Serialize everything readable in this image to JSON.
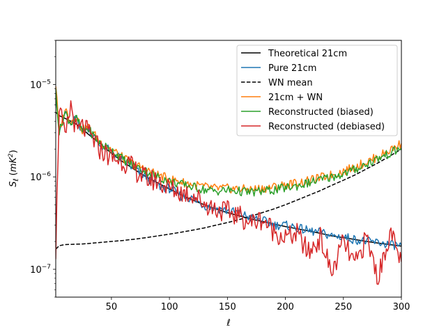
{
  "chart_data": {
    "type": "line",
    "title": "",
    "xlabel": "ℓ",
    "ylabel": "S_ℓ (mK²)",
    "ylabel_parts": {
      "sym": "S",
      "sub": "ℓ",
      "unit_open": "(",
      "unit": "mK",
      "sup": "2",
      "unit_close": ")"
    },
    "yscale": "log",
    "xlim": [
      2,
      300
    ],
    "ylim": [
      5e-08,
      3e-05
    ],
    "x_ticks": [
      50,
      100,
      150,
      200,
      250,
      300
    ],
    "x_tick_labels": [
      "50",
      "100",
      "150",
      "200",
      "250",
      "300"
    ],
    "y_ticks": [
      1e-07,
      1e-06,
      1e-05
    ],
    "y_tick_labels": [
      {
        "base": "10",
        "exp": "−7"
      },
      {
        "base": "10",
        "exp": "−6"
      },
      {
        "base": "10",
        "exp": "−5"
      }
    ],
    "legend_position": "upper-right",
    "x": [
      2,
      5,
      10,
      15,
      20,
      25,
      30,
      40,
      50,
      60,
      70,
      80,
      90,
      100,
      110,
      120,
      130,
      140,
      150,
      160,
      170,
      180,
      190,
      200,
      210,
      220,
      230,
      240,
      250,
      260,
      270,
      280,
      290,
      300
    ],
    "series": [
      {
        "name": "Theoretical 21cm",
        "color": "#000000",
        "dash": "solid",
        "values": [
          5e-06,
          4.6e-06,
          4.3e-06,
          4e-06,
          3.7e-06,
          3.3e-06,
          2.9e-06,
          2.3e-06,
          1.8e-06,
          1.45e-06,
          1.2e-06,
          1e-06,
          8.6e-07,
          7.4e-07,
          6.4e-07,
          5.6e-07,
          5e-07,
          4.5e-07,
          4.1e-07,
          3.8e-07,
          3.5e-07,
          3.3e-07,
          3.1e-07,
          2.9e-07,
          2.75e-07,
          2.6e-07,
          2.45e-07,
          2.3e-07,
          2.2e-07,
          2.1e-07,
          2e-07,
          1.92e-07,
          1.85e-07,
          1.78e-07
        ]
      },
      {
        "name": "Pure 21cm",
        "color": "#1f77b4",
        "dash": "solid",
        "values": [
          8e-06,
          3e-06,
          5e-06,
          3.5e-06,
          4.5e-06,
          3e-06,
          3.4e-06,
          2.2e-06,
          1.9e-06,
          1.5e-06,
          1.2e-06,
          1e-06,
          8e-07,
          7.5e-07,
          6.2e-07,
          5.8e-07,
          4.9e-07,
          4.6e-07,
          4.3e-07,
          4.1e-07,
          3.6e-07,
          3.4e-07,
          3e-07,
          3e-07,
          2.8e-07,
          2.6e-07,
          2.5e-07,
          2.3e-07,
          2.25e-07,
          2.1e-07,
          2e-07,
          1.95e-07,
          1.85e-07,
          1.8e-07
        ]
      },
      {
        "name": "WN mean",
        "color": "#000000",
        "dash": "dashed",
        "values": [
          1.65e-07,
          1.8e-07,
          1.85e-07,
          1.86e-07,
          1.87e-07,
          1.88e-07,
          1.9e-07,
          1.95e-07,
          2e-07,
          2.05e-07,
          2.12e-07,
          2.2e-07,
          2.3e-07,
          2.4e-07,
          2.52e-07,
          2.65e-07,
          2.8e-07,
          3e-07,
          3.2e-07,
          3.45e-07,
          3.75e-07,
          4.1e-07,
          4.5e-07,
          5e-07,
          5.6e-07,
          6.3e-07,
          7.1e-07,
          8.1e-07,
          9.2e-07,
          1.05e-06,
          1.22e-06,
          1.42e-06,
          1.68e-06,
          2e-06
        ]
      },
      {
        "name": "21cm + WN",
        "color": "#ff7f0e",
        "dash": "solid",
        "values": [
          1e-05,
          3e-06,
          5.5e-06,
          4e-06,
          4.5e-06,
          3.2e-06,
          3.5e-06,
          2.4e-06,
          2e-06,
          1.6e-06,
          1.35e-06,
          1.2e-06,
          1.05e-06,
          9.5e-07,
          8.8e-07,
          8.3e-07,
          7.8e-07,
          7.5e-07,
          7.5e-07,
          7.4e-07,
          7.3e-07,
          7.5e-07,
          7.8e-07,
          8.2e-07,
          8.6e-07,
          9e-07,
          9.8e-07,
          1.05e-06,
          1.15e-06,
          1.28e-06,
          1.45e-06,
          1.65e-06,
          1.95e-06,
          2.3e-06
        ]
      },
      {
        "name": "Reconstructed (biased)",
        "color": "#2ca02c",
        "dash": "solid",
        "values": [
          9e-06,
          3e-06,
          5e-06,
          3.8e-06,
          4.3e-06,
          3.1e-06,
          3.3e-06,
          2.3e-06,
          1.95e-06,
          1.55e-06,
          1.3e-06,
          1.15e-06,
          1e-06,
          9e-07,
          8.3e-07,
          7.8e-07,
          7.3e-07,
          7e-07,
          7.2e-07,
          7e-07,
          6.8e-07,
          7e-07,
          7.2e-07,
          7.6e-07,
          8e-07,
          8.6e-07,
          9.3e-07,
          1e-06,
          1.08e-06,
          1.2e-06,
          1.38e-06,
          1.58e-06,
          1.8e-06,
          2.05e-06
        ]
      },
      {
        "name": "Reconstructed (debiased)",
        "color": "#d62728",
        "dash": "solid",
        "values": [
          1.6e-07,
          6e-06,
          2.5e-06,
          6e-06,
          3e-06,
          3.5e-06,
          3e-06,
          2e-06,
          1.6e-06,
          1.5e-06,
          1.2e-06,
          9.5e-07,
          9e-07,
          7.5e-07,
          6.8e-07,
          6.5e-07,
          5.2e-07,
          4.5e-07,
          4.2e-07,
          3.8e-07,
          3.2e-07,
          3.5e-07,
          2.6e-07,
          2.2e-07,
          2.4e-07,
          1.5e-07,
          2.2e-07,
          9e-08,
          2e-07,
          1.1e-07,
          2.2e-07,
          8e-08,
          2.5e-07,
          1.2e-07
        ]
      }
    ]
  }
}
